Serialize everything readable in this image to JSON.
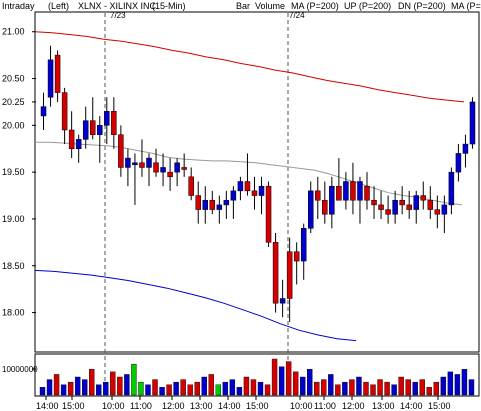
{
  "header": {
    "period": "Intraday",
    "axis_side": "(Left)",
    "symbol": "XLNX - XILINX INC",
    "interval": "(15-Min)",
    "style": "Bar",
    "volume": "Volume",
    "ma": "MA (P=200)",
    "up": "UP (P=200)",
    "dn": "DN (P=200)",
    "ma2": "MA (P=",
    "colors": {
      "volume": "#00aa00",
      "ma": "#d40000",
      "up": "#00aa00",
      "dn": "#0000cc",
      "ma2": "#999999"
    }
  },
  "date_markers": [
    "7/23",
    "7/24"
  ],
  "volume_axis_label": "10000000",
  "chart_data": {
    "type": "candlestick",
    "price_axis": {
      "ticks": [
        21.0,
        20.5,
        20.25,
        20.0,
        19.5,
        19.0,
        18.5,
        18.0
      ],
      "ylim": [
        17.6,
        21.2
      ]
    },
    "time_ticks": [
      "14:00",
      "15:00",
      "10:00",
      "11:00",
      "12:00",
      "13:00",
      "14:00",
      "15:00",
      "10:00",
      "11:00",
      "12:00",
      "13:00",
      "14:00",
      "15:00"
    ],
    "candles": [
      {
        "o": 20.2,
        "h": 20.35,
        "l": 19.95,
        "c": 20.1,
        "color": "blue"
      },
      {
        "o": 20.3,
        "h": 20.85,
        "l": 20.2,
        "c": 20.7,
        "color": "blue"
      },
      {
        "o": 20.75,
        "h": 20.8,
        "l": 20.25,
        "c": 20.35,
        "color": "red"
      },
      {
        "o": 20.35,
        "h": 20.4,
        "l": 19.8,
        "c": 19.95,
        "color": "red"
      },
      {
        "o": 19.95,
        "h": 20.15,
        "l": 19.65,
        "c": 19.75,
        "color": "red"
      },
      {
        "o": 19.75,
        "h": 19.9,
        "l": 19.6,
        "c": 19.85,
        "color": "blue"
      },
      {
        "o": 19.85,
        "h": 20.2,
        "l": 19.75,
        "c": 20.05,
        "color": "blue"
      },
      {
        "o": 20.05,
        "h": 20.3,
        "l": 19.85,
        "c": 19.9,
        "color": "red"
      },
      {
        "o": 19.9,
        "h": 20.1,
        "l": 19.6,
        "c": 20.0,
        "color": "blue"
      },
      {
        "o": 20.0,
        "h": 20.3,
        "l": 19.8,
        "c": 20.15,
        "color": "blue"
      },
      {
        "o": 20.15,
        "h": 20.3,
        "l": 19.75,
        "c": 19.9,
        "color": "red"
      },
      {
        "o": 19.9,
        "h": 20.0,
        "l": 19.45,
        "c": 19.55,
        "color": "red"
      },
      {
        "o": 19.55,
        "h": 19.75,
        "l": 19.35,
        "c": 19.65,
        "color": "blue"
      },
      {
        "o": 19.6,
        "h": 19.7,
        "l": 19.15,
        "c": 19.6,
        "color": "blue"
      },
      {
        "o": 19.6,
        "h": 19.85,
        "l": 19.45,
        "c": 19.55,
        "color": "red"
      },
      {
        "o": 19.55,
        "h": 19.7,
        "l": 19.35,
        "c": 19.65,
        "color": "blue"
      },
      {
        "o": 19.6,
        "h": 19.75,
        "l": 19.45,
        "c": 19.5,
        "color": "red"
      },
      {
        "o": 19.5,
        "h": 19.7,
        "l": 19.35,
        "c": 19.55,
        "color": "blue"
      },
      {
        "o": 19.5,
        "h": 19.65,
        "l": 19.3,
        "c": 19.45,
        "color": "red"
      },
      {
        "o": 19.5,
        "h": 19.65,
        "l": 19.35,
        "c": 19.6,
        "color": "blue"
      },
      {
        "o": 19.55,
        "h": 19.7,
        "l": 19.45,
        "c": 19.55,
        "color": "red"
      },
      {
        "o": 19.45,
        "h": 19.55,
        "l": 19.2,
        "c": 19.25,
        "color": "red"
      },
      {
        "o": 19.25,
        "h": 19.4,
        "l": 18.95,
        "c": 19.1,
        "color": "red"
      },
      {
        "o": 19.1,
        "h": 19.35,
        "l": 18.95,
        "c": 19.2,
        "color": "blue"
      },
      {
        "o": 19.2,
        "h": 19.3,
        "l": 19.05,
        "c": 19.1,
        "color": "red"
      },
      {
        "o": 19.1,
        "h": 19.25,
        "l": 18.95,
        "c": 19.15,
        "color": "blue"
      },
      {
        "o": 19.15,
        "h": 19.3,
        "l": 19.0,
        "c": 19.2,
        "color": "blue"
      },
      {
        "o": 19.2,
        "h": 19.35,
        "l": 19.0,
        "c": 19.3,
        "color": "blue"
      },
      {
        "o": 19.3,
        "h": 19.45,
        "l": 19.2,
        "c": 19.4,
        "color": "blue"
      },
      {
        "o": 19.4,
        "h": 19.7,
        "l": 19.25,
        "c": 19.3,
        "color": "red"
      },
      {
        "o": 19.3,
        "h": 19.45,
        "l": 19.1,
        "c": 19.25,
        "color": "red"
      },
      {
        "o": 19.25,
        "h": 19.45,
        "l": 19.05,
        "c": 19.35,
        "color": "blue"
      },
      {
        "o": 19.35,
        "h": 19.4,
        "l": 18.7,
        "c": 18.75,
        "color": "red"
      },
      {
        "o": 18.75,
        "h": 18.85,
        "l": 18.0,
        "c": 18.1,
        "color": "red"
      },
      {
        "o": 18.1,
        "h": 18.35,
        "l": 17.95,
        "c": 18.15,
        "color": "blue"
      },
      {
        "o": 18.15,
        "h": 18.8,
        "l": 17.9,
        "c": 18.65,
        "color": "red"
      },
      {
        "o": 18.65,
        "h": 18.75,
        "l": 18.3,
        "c": 18.55,
        "color": "red"
      },
      {
        "o": 18.55,
        "h": 18.95,
        "l": 18.35,
        "c": 18.9,
        "color": "blue"
      },
      {
        "o": 18.9,
        "h": 19.4,
        "l": 18.85,
        "c": 19.3,
        "color": "blue"
      },
      {
        "o": 19.3,
        "h": 19.45,
        "l": 19.0,
        "c": 19.2,
        "color": "red"
      },
      {
        "o": 19.2,
        "h": 19.4,
        "l": 18.95,
        "c": 19.05,
        "color": "red"
      },
      {
        "o": 19.05,
        "h": 19.45,
        "l": 18.9,
        "c": 19.35,
        "color": "blue"
      },
      {
        "o": 19.35,
        "h": 19.65,
        "l": 19.2,
        "c": 19.2,
        "color": "red"
      },
      {
        "o": 19.2,
        "h": 19.5,
        "l": 19.1,
        "c": 19.4,
        "color": "blue"
      },
      {
        "o": 19.4,
        "h": 19.6,
        "l": 19.05,
        "c": 19.2,
        "color": "red"
      },
      {
        "o": 19.2,
        "h": 19.45,
        "l": 18.95,
        "c": 19.4,
        "color": "blue"
      },
      {
        "o": 19.35,
        "h": 19.5,
        "l": 19.1,
        "c": 19.2,
        "color": "red"
      },
      {
        "o": 19.2,
        "h": 19.35,
        "l": 19.0,
        "c": 19.15,
        "color": "red"
      },
      {
        "o": 19.15,
        "h": 19.3,
        "l": 19.0,
        "c": 19.1,
        "color": "red"
      },
      {
        "o": 19.1,
        "h": 19.25,
        "l": 18.95,
        "c": 19.05,
        "color": "red"
      },
      {
        "o": 19.05,
        "h": 19.3,
        "l": 18.95,
        "c": 19.2,
        "color": "blue"
      },
      {
        "o": 19.2,
        "h": 19.35,
        "l": 19.05,
        "c": 19.15,
        "color": "red"
      },
      {
        "o": 19.15,
        "h": 19.3,
        "l": 19.0,
        "c": 19.1,
        "color": "red"
      },
      {
        "o": 19.1,
        "h": 19.3,
        "l": 18.95,
        "c": 19.25,
        "color": "blue"
      },
      {
        "o": 19.25,
        "h": 19.4,
        "l": 19.1,
        "c": 19.2,
        "color": "red"
      },
      {
        "o": 19.2,
        "h": 19.35,
        "l": 19.0,
        "c": 19.1,
        "color": "red"
      },
      {
        "o": 19.1,
        "h": 19.25,
        "l": 18.9,
        "c": 19.05,
        "color": "red"
      },
      {
        "o": 19.05,
        "h": 19.25,
        "l": 18.85,
        "c": 19.15,
        "color": "blue"
      },
      {
        "o": 19.15,
        "h": 19.55,
        "l": 19.05,
        "c": 19.5,
        "color": "blue"
      },
      {
        "o": 19.5,
        "h": 19.8,
        "l": 19.4,
        "c": 19.7,
        "color": "blue"
      },
      {
        "o": 19.7,
        "h": 19.9,
        "l": 19.55,
        "c": 19.8,
        "color": "blue"
      },
      {
        "o": 19.8,
        "h": 20.3,
        "l": 19.75,
        "c": 20.25,
        "color": "blue"
      }
    ],
    "ma_line": [
      19.82,
      19.82,
      19.81,
      19.8,
      19.79,
      19.78,
      19.76,
      19.73,
      19.7,
      19.66,
      19.64,
      19.63,
      19.62,
      19.62,
      19.61,
      19.6,
      19.58,
      19.56,
      19.54,
      19.52,
      19.48,
      19.43,
      19.38,
      19.33,
      19.28,
      19.25,
      19.23,
      19.2,
      19.17,
      19.15
    ],
    "up_line": [
      21.0,
      20.99,
      20.97,
      20.95,
      20.92,
      20.9,
      20.87,
      20.84,
      20.8,
      20.77,
      20.73,
      20.7,
      20.66,
      20.63,
      20.59,
      20.56,
      20.52,
      20.48,
      20.45,
      20.42,
      20.38,
      20.35,
      20.32,
      20.29,
      20.27,
      20.25
    ],
    "dn_line": [
      18.45,
      18.44,
      18.42,
      18.4,
      18.37,
      18.34,
      18.3,
      18.26,
      18.21,
      18.16,
      18.1,
      18.03,
      17.96,
      17.88,
      17.81,
      17.76,
      17.72,
      17.7
    ],
    "volume": [
      3,
      6,
      8,
      4,
      5,
      7,
      6,
      10,
      4,
      5,
      9,
      7,
      8,
      12,
      5,
      4,
      6,
      3,
      4,
      5,
      6,
      4,
      5,
      7,
      8,
      4,
      5,
      6,
      3,
      7,
      6,
      5,
      4,
      14,
      11,
      13,
      9,
      7,
      10,
      5,
      6,
      8,
      4,
      5,
      6,
      7,
      5,
      4,
      6,
      5,
      4,
      7,
      6,
      5,
      6,
      3,
      5,
      7,
      9,
      8,
      10,
      6
    ],
    "volume_colors": [
      "blue",
      "blue",
      "red",
      "blue",
      "red",
      "blue",
      "blue",
      "red",
      "blue",
      "blue",
      "red",
      "red",
      "blue",
      "green",
      "green",
      "blue",
      "red",
      "blue",
      "red",
      "blue",
      "red",
      "red",
      "red",
      "blue",
      "red",
      "green",
      "blue",
      "blue",
      "blue",
      "red",
      "red",
      "blue",
      "red",
      "red",
      "blue",
      "red",
      "red",
      "blue",
      "blue",
      "red",
      "red",
      "blue",
      "red",
      "blue",
      "red",
      "blue",
      "red",
      "red",
      "red",
      "red",
      "blue",
      "red",
      "red",
      "blue",
      "red",
      "red",
      "red",
      "blue",
      "blue",
      "blue",
      "blue",
      "blue"
    ]
  }
}
